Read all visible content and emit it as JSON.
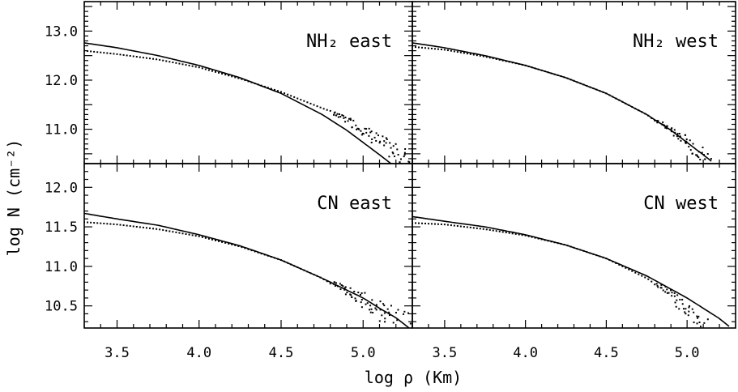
{
  "figure": {
    "xlabel": "log ρ (Km)",
    "ylabel": "log N (cm⁻²)",
    "x_ticks": [
      "3.5",
      "4.0",
      "4.5",
      "5.0"
    ]
  },
  "chart_data": [
    {
      "type": "line",
      "panel": "top-left",
      "label": "NH₂ east",
      "xlim": [
        3.3,
        5.3
      ],
      "ylim": [
        10.3,
        13.6
      ],
      "y_ticks": [
        "11.0",
        "12.0",
        "13.0"
      ],
      "series": [
        {
          "style": "solid",
          "x": [
            3.3,
            3.5,
            3.75,
            4.0,
            4.25,
            4.5,
            4.75,
            4.9,
            5.0,
            5.1,
            5.17
          ],
          "y": [
            12.76,
            12.66,
            12.5,
            12.3,
            12.05,
            11.73,
            11.3,
            10.98,
            10.73,
            10.48,
            10.3
          ]
        },
        {
          "style": "dotted",
          "x": [
            3.3,
            3.5,
            3.75,
            4.0,
            4.25,
            4.5,
            4.75,
            4.9,
            5.0,
            5.1,
            5.2,
            5.3
          ],
          "y": [
            12.6,
            12.53,
            12.42,
            12.26,
            12.03,
            11.76,
            11.43,
            11.2,
            11.0,
            10.75,
            10.5,
            10.35
          ]
        }
      ]
    },
    {
      "type": "line",
      "panel": "top-right",
      "label": "NH₂ west",
      "xlim": [
        3.3,
        5.3
      ],
      "ylim": [
        10.3,
        13.6
      ],
      "y_ticks": [
        "11.0",
        "12.0",
        "13.0"
      ],
      "series": [
        {
          "style": "solid",
          "x": [
            3.3,
            3.5,
            3.75,
            4.0,
            4.25,
            4.5,
            4.75,
            4.9,
            5.0,
            5.1,
            5.15
          ],
          "y": [
            12.76,
            12.66,
            12.5,
            12.3,
            12.05,
            11.73,
            11.3,
            10.98,
            10.73,
            10.48,
            10.35
          ]
        },
        {
          "style": "dotted",
          "x": [
            3.3,
            3.5,
            3.75,
            4.0,
            4.25,
            4.5,
            4.75,
            4.9,
            5.0,
            5.1,
            5.15
          ],
          "y": [
            12.68,
            12.62,
            12.48,
            12.3,
            12.05,
            11.73,
            11.3,
            10.98,
            10.73,
            10.48,
            10.35
          ]
        }
      ]
    },
    {
      "type": "line",
      "panel": "bottom-left",
      "label": "CN east",
      "xlim": [
        3.3,
        5.3
      ],
      "ylim": [
        10.22,
        12.3
      ],
      "y_ticks": [
        "10.5",
        "11.0",
        "11.5",
        "12.0"
      ],
      "series": [
        {
          "style": "solid",
          "x": [
            3.3,
            3.5,
            3.75,
            4.0,
            4.25,
            4.5,
            4.75,
            5.0,
            5.1,
            5.2,
            5.28
          ],
          "y": [
            11.67,
            11.6,
            11.52,
            11.4,
            11.26,
            11.08,
            10.85,
            10.6,
            10.47,
            10.35,
            10.22
          ]
        },
        {
          "style": "dotted",
          "x": [
            3.3,
            3.5,
            3.75,
            4.0,
            4.25,
            4.5,
            4.75,
            5.0,
            5.1,
            5.2,
            5.28
          ],
          "y": [
            11.56,
            11.53,
            11.47,
            11.38,
            11.25,
            11.08,
            10.85,
            10.58,
            10.45,
            10.33,
            10.22
          ]
        }
      ]
    },
    {
      "type": "line",
      "panel": "bottom-right",
      "label": "CN west",
      "xlim": [
        3.3,
        5.3
      ],
      "ylim": [
        10.22,
        12.3
      ],
      "y_ticks": [
        "10.5",
        "11.0",
        "11.5",
        "12.0"
      ],
      "series": [
        {
          "style": "solid",
          "x": [
            3.3,
            3.5,
            3.75,
            4.0,
            4.25,
            4.5,
            4.75,
            5.0,
            5.1,
            5.2,
            5.26
          ],
          "y": [
            11.63,
            11.57,
            11.5,
            11.4,
            11.27,
            11.1,
            10.88,
            10.6,
            10.47,
            10.34,
            10.24
          ]
        },
        {
          "style": "dotted",
          "x": [
            3.3,
            3.5,
            3.75,
            4.0,
            4.25,
            4.5,
            4.75,
            4.9,
            5.0,
            5.1,
            5.13
          ],
          "y": [
            11.55,
            11.53,
            11.47,
            11.39,
            11.27,
            11.1,
            10.85,
            10.64,
            10.45,
            10.28,
            10.22
          ]
        }
      ]
    }
  ]
}
